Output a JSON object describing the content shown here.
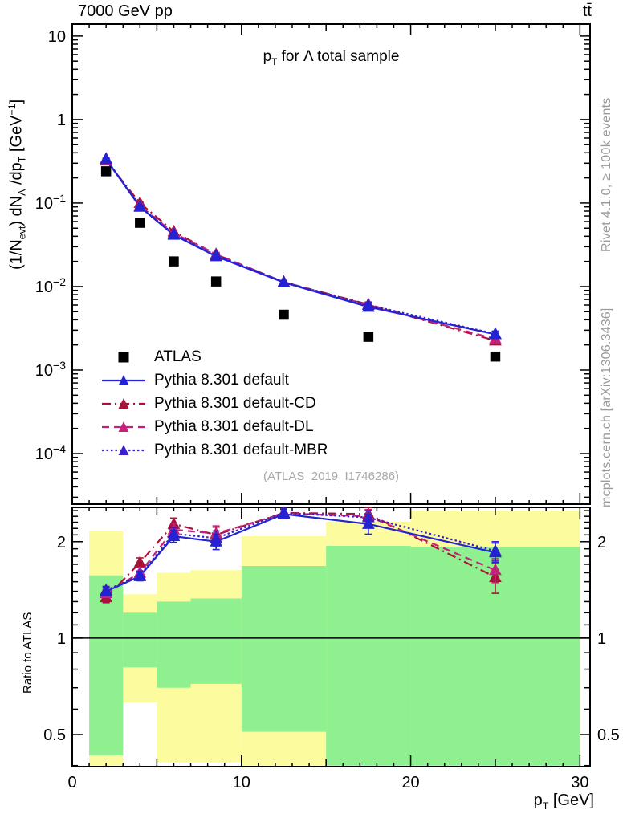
{
  "header": {
    "beam_energy": "7000 GeV pp",
    "process": "tt̄"
  },
  "side_notes": {
    "generator_note": "Rivet 4.1.0, ≥ 100k events",
    "reference_note": "mcplots.cern.ch [arXiv:1306.3436]"
  },
  "watermark": "(ATLAS_2019_I1746286)",
  "title": {
    "pre": "p",
    "sub": "T",
    "post": " for Λ total sample"
  },
  "axis_titles": {
    "y_main": {
      "p1": "(1/N",
      "s1": "evt",
      "p2": ") dN",
      "s2": "Λ",
      "p3": " /dp",
      "s3": "T",
      "p4": " [GeV",
      "e1": "−1",
      "p5": "]"
    },
    "y_ratio": "Ratio to ATLAS",
    "x": {
      "pre": "p",
      "sub": "T",
      "post": " [GeV]"
    }
  },
  "chart_data": {
    "type": "line",
    "x_range": [
      0,
      30.6
    ],
    "x_points": [
      2,
      4,
      6,
      8.5,
      12.5,
      17.5,
      25
    ],
    "x_ticks": {
      "major": [
        0,
        10,
        20,
        30
      ],
      "labels": [
        "0",
        "10",
        "20",
        "30"
      ],
      "medium": [
        5,
        15,
        25
      ],
      "minor_step": 1
    },
    "main": {
      "y_scale": "log",
      "y_range": [
        2.48e-05,
        13.9
      ],
      "y_tick_labels": [
        {
          "v": 10,
          "base": "10",
          "exp": ""
        },
        {
          "v": 1,
          "base": "1",
          "exp": ""
        },
        {
          "v": 0.1,
          "base": "10",
          "exp": "−1"
        },
        {
          "v": 0.01,
          "base": "10",
          "exp": "−2"
        },
        {
          "v": 0.001,
          "base": "10",
          "exp": "−3"
        },
        {
          "v": 0.0001,
          "base": "10",
          "exp": "−4"
        }
      ]
    },
    "ratio": {
      "y_scale": "log",
      "y_range": [
        0.397,
        2.56
      ],
      "majors": [
        2,
        1,
        0.5
      ],
      "major_labels": [
        "2",
        "1",
        "0.5"
      ],
      "minors": [
        0.4,
        0.6,
        0.7,
        0.8,
        0.9,
        1.1,
        1.2,
        1.3,
        1.4,
        1.5,
        1.6,
        1.7,
        1.8,
        1.9,
        2.1,
        2.2,
        2.3,
        2.4,
        2.5
      ],
      "baseline": 1
    },
    "ref_series": {
      "label": "ATLAS",
      "color": "#000000",
      "marker": "square",
      "values": [
        0.24,
        0.058,
        0.02,
        0.0115,
        0.0046,
        0.0025,
        0.00145
      ]
    },
    "series": [
      {
        "label": "Pythia 8.301 default",
        "color": "#2323d3",
        "line": "solid",
        "marker": "triangle",
        "values": [
          0.335,
          0.09,
          0.0415,
          0.023,
          0.0112,
          0.0057,
          0.00268
        ],
        "err_frac": [
          0.02,
          0.03,
          0.04,
          0.05,
          0.04,
          0.07,
          0.08
        ],
        "ratio": [
          1.4,
          1.56,
          2.08,
          2.0,
          2.44,
          2.27,
          1.85
        ],
        "ratio_err": [
          0.04,
          0.05,
          0.09,
          0.11,
          0.08,
          0.16,
          0.13
        ]
      },
      {
        "label": "Pythia 8.301 default-CD",
        "color": "#a8123a",
        "line": "dashdot",
        "marker": "triangle",
        "values": [
          0.322,
          0.1,
          0.0455,
          0.0242,
          0.0113,
          0.0061,
          0.00225
        ],
        "err_frac": [
          0.02,
          0.03,
          0.04,
          0.05,
          0.04,
          0.07,
          0.08
        ],
        "ratio": [
          1.34,
          1.72,
          2.27,
          2.1,
          2.46,
          2.44,
          1.55
        ],
        "ratio_err": [
          0.05,
          0.06,
          0.1,
          0.12,
          0.08,
          0.12,
          0.17
        ]
      },
      {
        "label": "Pythia 8.301 default-DL",
        "color": "#c2227a",
        "line": "dashed",
        "marker": "triangle",
        "values": [
          0.33,
          0.093,
          0.0435,
          0.0244,
          0.0113,
          0.006,
          0.00236
        ],
        "err_frac": [
          0.02,
          0.03,
          0.04,
          0.05,
          0.04,
          0.07,
          0.08
        ],
        "ratio": [
          1.38,
          1.6,
          2.18,
          2.12,
          2.45,
          2.4,
          1.63
        ],
        "ratio_err": [
          0.04,
          0.06,
          0.1,
          0.12,
          0.08,
          0.12,
          0.14
        ]
      },
      {
        "label": "Pythia 8.301 default-MBR",
        "color": "#3c1ec8",
        "line": "dotted",
        "marker": "triangle",
        "values": [
          0.338,
          0.091,
          0.0425,
          0.0236,
          0.0113,
          0.006,
          0.00271
        ],
        "err_frac": [
          0.02,
          0.03,
          0.04,
          0.05,
          0.04,
          0.07,
          0.08
        ],
        "ratio": [
          1.41,
          1.57,
          2.12,
          2.05,
          2.46,
          2.38,
          1.87
        ],
        "ratio_err": [
          0.04,
          0.05,
          0.09,
          0.11,
          0.08,
          0.12,
          0.13
        ]
      }
    ],
    "bands": {
      "colors": {
        "outer": "#fcfc9f",
        "inner": "#8ef08e"
      },
      "bins": [
        {
          "x": [
            1,
            3
          ],
          "outer": [
            0.4,
            2.16
          ],
          "inner": [
            0.43,
            1.57
          ]
        },
        {
          "x": [
            3,
            5
          ],
          "outer": [
            0.63,
            1.37
          ],
          "inner": [
            0.81,
            1.2
          ]
        },
        {
          "x": [
            5,
            7
          ],
          "outer": [
            0.41,
            1.6
          ],
          "inner": [
            0.7,
            1.3
          ]
        },
        {
          "x": [
            7,
            10
          ],
          "outer": [
            0.41,
            1.63
          ],
          "inner": [
            0.72,
            1.33
          ]
        },
        {
          "x": [
            10,
            15
          ],
          "outer": [
            0.4,
            2.08
          ],
          "inner": [
            0.51,
            1.68
          ]
        },
        {
          "x": [
            15,
            20
          ],
          "outer": [
            0.4,
            2.31
          ],
          "inner": [
            0.4,
            1.94
          ]
        },
        {
          "x": [
            20,
            30
          ],
          "outer": [
            0.4,
            2.5
          ],
          "inner": [
            0.4,
            1.93
          ]
        }
      ]
    }
  }
}
